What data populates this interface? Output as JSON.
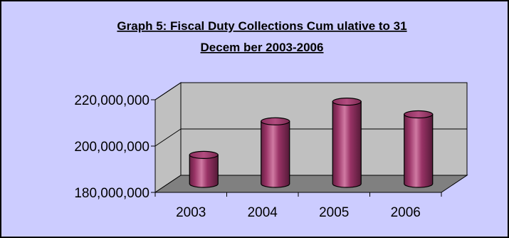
{
  "chart_data": {
    "type": "bar",
    "title_line1": "Graph 5: Fiscal Duty Collections Cum ulative to 31",
    "title_line2": "Decem ber 2003-2006",
    "categories": [
      "2003",
      "2004",
      "2005",
      "2006"
    ],
    "values": [
      192500000,
      207000000,
      215500000,
      210000000
    ],
    "ylim": [
      180000000,
      220000000
    ],
    "yticks": [
      180000000,
      200000000,
      220000000
    ],
    "ytick_labels": [
      "180,000,000",
      "200,000,000",
      "220,000,000"
    ],
    "grid": true,
    "legend": "none"
  },
  "colors": {
    "background": "#ccccff",
    "wall": "#c0c0c0",
    "floor": "#808080",
    "bar_main": "#993366",
    "bar_highlight": "#cc6699",
    "bar_dark": "#662244",
    "border": "#000000"
  }
}
